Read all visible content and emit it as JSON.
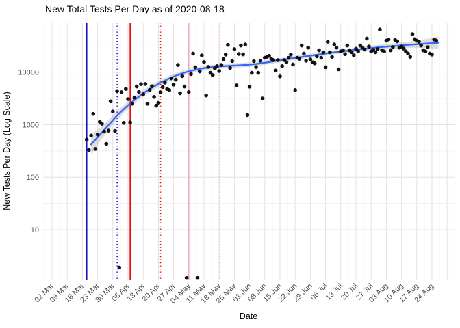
{
  "title": "New Total Tests Per Day as of 2020-08-18",
  "x_axis": {
    "title": "Date"
  },
  "y_axis": {
    "title": "New Tests Per Day (Log Scale)"
  },
  "colors": {
    "smooth_line": "#3366FF",
    "ci_band": "#9E9E9E",
    "points": "#000000",
    "grid_major": "#E4E4E4",
    "grid_minor": "#F0F0F0",
    "axis_text": "#4D4D4D",
    "title_text": "#000000"
  },
  "chart_data": {
    "type": "scatter",
    "title": "New Total Tests Per Day as of 2020-08-18",
    "xlabel": "Date",
    "ylabel": "New Tests Per Day (Log Scale)",
    "y_scale": "log10",
    "grid": true,
    "legend_position": "none",
    "y_ticks": [
      [
        10,
        "10"
      ],
      [
        100,
        "100"
      ],
      [
        1000,
        "1000"
      ],
      [
        10000,
        "10000"
      ]
    ],
    "x_ticks": [
      [
        "2020-03-02",
        "02 Mar"
      ],
      [
        "2020-03-09",
        "09 Mar"
      ],
      [
        "2020-03-16",
        "16 Mar"
      ],
      [
        "2020-03-23",
        "23 Mar"
      ],
      [
        "2020-03-30",
        "30 Mar"
      ],
      [
        "2020-04-06",
        "06 Apr"
      ],
      [
        "2020-04-13",
        "13 Apr"
      ],
      [
        "2020-04-20",
        "20 Apr"
      ],
      [
        "2020-04-27",
        "27 Apr"
      ],
      [
        "2020-05-04",
        "04 May"
      ],
      [
        "2020-05-11",
        "11 May"
      ],
      [
        "2020-05-18",
        "18 May"
      ],
      [
        "2020-05-25",
        "25 May"
      ],
      [
        "2020-06-01",
        "01 Jun"
      ],
      [
        "2020-06-08",
        "08 Jun"
      ],
      [
        "2020-06-15",
        "15 Jun"
      ],
      [
        "2020-06-22",
        "22 Jun"
      ],
      [
        "2020-06-29",
        "29 Jun"
      ],
      [
        "2020-07-06",
        "06 Jul"
      ],
      [
        "2020-07-13",
        "13 Jul"
      ],
      [
        "2020-07-20",
        "20 Jul"
      ],
      [
        "2020-07-27",
        "27 Jul"
      ],
      [
        "2020-08-03",
        "03 Aug"
      ],
      [
        "2020-08-10",
        "10 Aug"
      ],
      [
        "2020-08-17",
        "17 Aug"
      ],
      [
        "2020-08-24",
        "24 Aug"
      ]
    ],
    "event_lines": [
      {
        "name": "blue-solid",
        "date": "2020-03-18",
        "style": "solid",
        "color": "#0F0FC8"
      },
      {
        "name": "blue-dotted",
        "date": "2020-04-01",
        "style": "dotted",
        "color": "#0F0FC8"
      },
      {
        "name": "red-solid",
        "date": "2020-04-07",
        "style": "solid",
        "color": "#E60000"
      },
      {
        "name": "red-dotted",
        "date": "2020-04-21",
        "style": "dotted",
        "color": "#E60000"
      },
      {
        "name": "pink-solid",
        "date": "2020-05-04",
        "style": "solid",
        "color": "#F3ABB9"
      },
      {
        "name": "pink-dotted",
        "date": "2020-05-18",
        "style": "dotted",
        "color": "#F6BCC8"
      }
    ],
    "smooth_line": [
      [
        "2020-03-20",
        420,
        0.2
      ],
      [
        "2020-03-24",
        640,
        0.13
      ],
      [
        "2020-03-28",
        980,
        0.1
      ],
      [
        "2020-04-01",
        1500,
        0.085
      ],
      [
        "2020-04-05",
        2150,
        0.075
      ],
      [
        "2020-04-09",
        2950,
        0.07
      ],
      [
        "2020-04-13",
        3950,
        0.065
      ],
      [
        "2020-04-17",
        5050,
        0.06
      ],
      [
        "2020-04-21",
        6300,
        0.055
      ],
      [
        "2020-04-25",
        7600,
        0.05
      ],
      [
        "2020-04-29",
        8900,
        0.048
      ],
      [
        "2020-05-03",
        10100,
        0.046
      ],
      [
        "2020-05-07",
        11100,
        0.045
      ],
      [
        "2020-05-11",
        11900,
        0.044
      ],
      [
        "2020-05-15",
        12500,
        0.043
      ],
      [
        "2020-05-19",
        12900,
        0.042
      ],
      [
        "2020-05-23",
        13200,
        0.042
      ],
      [
        "2020-05-27",
        13500,
        0.042
      ],
      [
        "2020-05-31",
        13800,
        0.042
      ],
      [
        "2020-06-04",
        14300,
        0.041
      ],
      [
        "2020-06-08",
        15100,
        0.04
      ],
      [
        "2020-06-12",
        16000,
        0.04
      ],
      [
        "2020-06-16",
        17000,
        0.039
      ],
      [
        "2020-06-20",
        18100,
        0.039
      ],
      [
        "2020-06-24",
        19200,
        0.038
      ],
      [
        "2020-06-28",
        20300,
        0.038
      ],
      [
        "2020-07-02",
        21400,
        0.038
      ],
      [
        "2020-07-06",
        22600,
        0.038
      ],
      [
        "2020-07-10",
        23800,
        0.038
      ],
      [
        "2020-07-14",
        25000,
        0.039
      ],
      [
        "2020-07-18",
        26200,
        0.04
      ],
      [
        "2020-07-22",
        27400,
        0.041
      ],
      [
        "2020-07-26",
        28500,
        0.043
      ],
      [
        "2020-07-30",
        29600,
        0.045
      ],
      [
        "2020-08-03",
        30700,
        0.048
      ],
      [
        "2020-08-07",
        31700,
        0.052
      ],
      [
        "2020-08-11",
        32700,
        0.058
      ],
      [
        "2020-08-15",
        33600,
        0.065
      ],
      [
        "2020-08-19",
        34500,
        0.075
      ],
      [
        "2020-08-23",
        35400,
        0.095
      ],
      [
        "2020-08-27",
        36300,
        0.125
      ]
    ],
    "points": [
      [
        "2020-03-18",
        520
      ],
      [
        "2020-03-19",
        330
      ],
      [
        "2020-03-20",
        620
      ],
      [
        "2020-03-21",
        1600
      ],
      [
        "2020-03-22",
        345
      ],
      [
        "2020-03-23",
        650
      ],
      [
        "2020-03-24",
        1130
      ],
      [
        "2020-03-25",
        1040
      ],
      [
        "2020-03-26",
        740
      ],
      [
        "2020-03-27",
        430
      ],
      [
        "2020-03-28",
        770
      ],
      [
        "2020-03-29",
        2780
      ],
      [
        "2020-03-30",
        1780
      ],
      [
        "2020-03-31",
        760
      ],
      [
        "2020-04-01",
        4360
      ],
      [
        "2020-04-02",
        1.9
      ],
      [
        "2020-04-03",
        4150
      ],
      [
        "2020-04-04",
        1080
      ],
      [
        "2020-04-05",
        4800
      ],
      [
        "2020-04-06",
        3070
      ],
      [
        "2020-04-07",
        1100
      ],
      [
        "2020-04-08",
        2500
      ],
      [
        "2020-04-09",
        3300
      ],
      [
        "2020-04-10",
        5330
      ],
      [
        "2020-04-11",
        4200
      ],
      [
        "2020-04-12",
        5900
      ],
      [
        "2020-04-13",
        3800
      ],
      [
        "2020-04-14",
        5950
      ],
      [
        "2020-04-15",
        2500
      ],
      [
        "2020-04-16",
        4600
      ],
      [
        "2020-04-17",
        5400
      ],
      [
        "2020-04-18",
        3380
      ],
      [
        "2020-04-19",
        2300
      ],
      [
        "2020-04-20",
        2600
      ],
      [
        "2020-04-21",
        4100
      ],
      [
        "2020-04-22",
        5200
      ],
      [
        "2020-04-23",
        6300
      ],
      [
        "2020-04-24",
        4780
      ],
      [
        "2020-04-25",
        4560
      ],
      [
        "2020-04-26",
        7600
      ],
      [
        "2020-04-27",
        5800
      ],
      [
        "2020-04-28",
        7200
      ],
      [
        "2020-04-29",
        13700
      ],
      [
        "2020-04-30",
        3960
      ],
      [
        "2020-05-01",
        8400
      ],
      [
        "2020-05-02",
        5330
      ],
      [
        "2020-05-03",
        1.2
      ],
      [
        "2020-05-04",
        4170
      ],
      [
        "2020-05-05",
        9200
      ],
      [
        "2020-05-06",
        22600
      ],
      [
        "2020-05-07",
        12400
      ],
      [
        "2020-05-08",
        1.2
      ],
      [
        "2020-05-09",
        10300
      ],
      [
        "2020-05-10",
        20900
      ],
      [
        "2020-05-11",
        15600
      ],
      [
        "2020-05-12",
        3600
      ],
      [
        "2020-05-13",
        12600
      ],
      [
        "2020-05-14",
        9700
      ],
      [
        "2020-05-15",
        8800
      ],
      [
        "2020-05-16",
        11800
      ],
      [
        "2020-05-17",
        13000
      ],
      [
        "2020-05-18",
        10500
      ],
      [
        "2020-05-19",
        13700
      ],
      [
        "2020-05-20",
        17700
      ],
      [
        "2020-05-21",
        21600
      ],
      [
        "2020-05-22",
        33100
      ],
      [
        "2020-05-23",
        12000
      ],
      [
        "2020-05-24",
        16200
      ],
      [
        "2020-05-25",
        27500
      ],
      [
        "2020-05-26",
        5600
      ],
      [
        "2020-05-27",
        22200
      ],
      [
        "2020-05-28",
        32200
      ],
      [
        "2020-05-29",
        21800
      ],
      [
        "2020-05-30",
        33700
      ],
      [
        "2020-05-31",
        1520
      ],
      [
        "2020-06-01",
        5300
      ],
      [
        "2020-06-02",
        9700
      ],
      [
        "2020-06-03",
        16200
      ],
      [
        "2020-06-04",
        12500
      ],
      [
        "2020-06-05",
        9700
      ],
      [
        "2020-06-06",
        16500
      ],
      [
        "2020-06-07",
        3150
      ],
      [
        "2020-06-08",
        18800
      ],
      [
        "2020-06-09",
        19600
      ],
      [
        "2020-06-10",
        20500
      ],
      [
        "2020-06-11",
        17900
      ],
      [
        "2020-06-12",
        17000
      ],
      [
        "2020-06-13",
        10700
      ],
      [
        "2020-06-14",
        17000
      ],
      [
        "2020-06-15",
        8300
      ],
      [
        "2020-06-16",
        13000
      ],
      [
        "2020-06-17",
        17000
      ],
      [
        "2020-06-18",
        15500
      ],
      [
        "2020-06-19",
        18800
      ],
      [
        "2020-06-20",
        21600
      ],
      [
        "2020-06-21",
        14000
      ],
      [
        "2020-06-22",
        4560
      ],
      [
        "2020-06-23",
        18800
      ],
      [
        "2020-06-24",
        17900
      ],
      [
        "2020-06-25",
        32200
      ],
      [
        "2020-06-26",
        22600
      ],
      [
        "2020-06-27",
        16500
      ],
      [
        "2020-06-28",
        29300
      ],
      [
        "2020-06-29",
        17500
      ],
      [
        "2020-06-30",
        15400
      ],
      [
        "2020-07-01",
        14700
      ],
      [
        "2020-07-02",
        20000
      ],
      [
        "2020-07-03",
        26100
      ],
      [
        "2020-07-04",
        18800
      ],
      [
        "2020-07-05",
        23900
      ],
      [
        "2020-07-06",
        12400
      ],
      [
        "2020-07-07",
        37800
      ],
      [
        "2020-07-08",
        23900
      ],
      [
        "2020-07-09",
        19500
      ],
      [
        "2020-07-10",
        33700
      ],
      [
        "2020-07-11",
        29300
      ],
      [
        "2020-07-12",
        11300
      ],
      [
        "2020-07-13",
        24900
      ],
      [
        "2020-07-14",
        26100
      ],
      [
        "2020-07-15",
        22000
      ],
      [
        "2020-07-16",
        32200
      ],
      [
        "2020-07-17",
        26000
      ],
      [
        "2020-07-18",
        24000
      ],
      [
        "2020-07-19",
        21000
      ],
      [
        "2020-07-20",
        28000
      ],
      [
        "2020-07-21",
        25000
      ],
      [
        "2020-07-22",
        32200
      ],
      [
        "2020-07-23",
        29300
      ],
      [
        "2020-07-24",
        27000
      ],
      [
        "2020-07-25",
        43700
      ],
      [
        "2020-07-26",
        30800
      ],
      [
        "2020-07-27",
        24900
      ],
      [
        "2020-07-28",
        26500
      ],
      [
        "2020-07-29",
        23900
      ],
      [
        "2020-07-30",
        27500
      ],
      [
        "2020-07-31",
        65000
      ],
      [
        "2020-08-01",
        26100
      ],
      [
        "2020-08-02",
        24900
      ],
      [
        "2020-08-03",
        39900
      ],
      [
        "2020-08-04",
        41900
      ],
      [
        "2020-08-05",
        26100
      ],
      [
        "2020-08-06",
        30000
      ],
      [
        "2020-08-07",
        41100
      ],
      [
        "2020-08-08",
        38700
      ],
      [
        "2020-08-09",
        29300
      ],
      [
        "2020-08-10",
        30800
      ],
      [
        "2020-08-11",
        28100
      ],
      [
        "2020-08-12",
        24900
      ],
      [
        "2020-08-13",
        22600
      ],
      [
        "2020-08-14",
        19600
      ],
      [
        "2020-08-15",
        53000
      ],
      [
        "2020-08-16",
        42500
      ],
      [
        "2020-08-17",
        39900
      ],
      [
        "2020-08-18",
        38000
      ],
      [
        "2020-08-19",
        32200
      ],
      [
        "2020-08-20",
        26100
      ],
      [
        "2020-08-21",
        24900
      ],
      [
        "2020-08-22",
        30000
      ],
      [
        "2020-08-23",
        22600
      ],
      [
        "2020-08-24",
        21600
      ],
      [
        "2020-08-25",
        41900
      ],
      [
        "2020-08-26",
        39900
      ]
    ]
  }
}
